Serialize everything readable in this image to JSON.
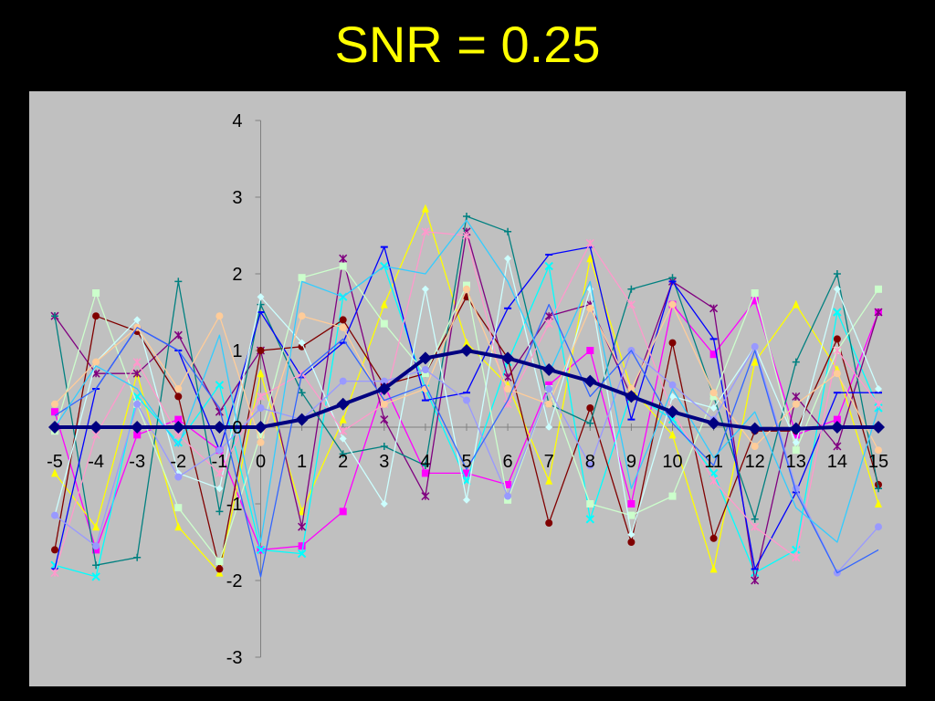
{
  "slide": {
    "title": "SNR = 0.25"
  },
  "colors": {
    "background": "#000000",
    "title": "#ffff00",
    "plot_background": "#c0c0c0",
    "mean_series": "#000080"
  },
  "chart_data": {
    "type": "line",
    "title": "SNR = 0.25",
    "xlabel": "",
    "ylabel": "",
    "x": [
      -5,
      -4,
      -3,
      -2,
      -1,
      0,
      1,
      2,
      3,
      4,
      5,
      6,
      7,
      8,
      9,
      10,
      11,
      12,
      13,
      14,
      15
    ],
    "xlim": [
      -5,
      15
    ],
    "ylim": [
      -3,
      4
    ],
    "y_ticks": [
      -3,
      -2,
      -1,
      0,
      1,
      2,
      3,
      4
    ],
    "grid": false,
    "legend": "none",
    "series": [
      {
        "color": "#000080",
        "marker": "diamond",
        "emphasis": true,
        "values": [
          0,
          0,
          0,
          0,
          0,
          0,
          0.1,
          0.3,
          0.5,
          0.9,
          1.0,
          0.9,
          0.75,
          0.6,
          0.4,
          0.2,
          0.05,
          -0.02,
          -0.02,
          0,
          0
        ]
      },
      {
        "color": "#ff00ff",
        "marker": "square",
        "values": [
          0.2,
          -1.6,
          -0.1,
          0.1,
          -0.3,
          -1.6,
          -1.55,
          -1.1,
          0.55,
          -0.6,
          -0.6,
          -0.75,
          0.55,
          1.0,
          -1.0,
          1.6,
          0.95,
          1.65,
          -0.1,
          0.1,
          1.5
        ]
      },
      {
        "color": "#ffff00",
        "marker": "triangle",
        "values": [
          -0.6,
          -1.3,
          0.7,
          -1.3,
          -1.9,
          0.7,
          -1.1,
          0.1,
          1.6,
          2.85,
          1.1,
          0.55,
          -0.7,
          2.2,
          0.5,
          -0.1,
          -1.85,
          0.85,
          1.6,
          0.75,
          -1.0
        ]
      },
      {
        "color": "#00ffff",
        "marker": "x",
        "values": [
          -1.8,
          -1.95,
          0.4,
          -0.2,
          0.55,
          -1.6,
          -1.65,
          1.7,
          2.1,
          0.5,
          -0.7,
          0.85,
          2.1,
          -1.2,
          0.45,
          0.1,
          -0.6,
          -1.9,
          -1.6,
          1.5,
          0.25
        ]
      },
      {
        "color": "#800080",
        "marker": "star",
        "values": [
          1.45,
          0.7,
          0.7,
          1.2,
          0.2,
          1.0,
          -1.3,
          2.2,
          0.1,
          -0.9,
          2.55,
          0.65,
          1.45,
          1.6,
          0.4,
          1.9,
          1.55,
          -2.0,
          0.4,
          -0.25,
          1.5
        ]
      },
      {
        "color": "#800000",
        "marker": "circle",
        "values": [
          -1.6,
          1.45,
          1.25,
          0.4,
          -1.85,
          1.0,
          1.05,
          1.4,
          0.55,
          0.7,
          1.7,
          0.9,
          -1.25,
          0.25,
          -1.5,
          1.1,
          -1.45,
          -0.05,
          -0.05,
          1.15,
          -0.75
        ]
      },
      {
        "color": "#008080",
        "marker": "plus",
        "values": [
          1.45,
          -1.8,
          -1.7,
          1.9,
          -1.1,
          1.6,
          0.45,
          -0.35,
          -0.25,
          -0.5,
          2.75,
          2.55,
          0.3,
          0.05,
          1.8,
          1.95,
          0.4,
          -1.2,
          0.85,
          2.0,
          -0.8
        ]
      },
      {
        "color": "#0000ff",
        "marker": "dash",
        "values": [
          -1.85,
          0.5,
          1.3,
          1.0,
          -0.3,
          1.5,
          0.65,
          1.1,
          2.35,
          0.35,
          0.45,
          1.55,
          2.25,
          2.35,
          0.1,
          1.9,
          1.15,
          -1.85,
          -0.85,
          0.45,
          0.45
        ]
      },
      {
        "color": "#ccffcc",
        "marker": "square",
        "values": [
          -0.05,
          1.75,
          0.3,
          -1.05,
          -1.75,
          -0.1,
          1.95,
          2.1,
          1.35,
          0.7,
          1.85,
          -0.95,
          0.5,
          -1.0,
          -1.15,
          -0.9,
          0.4,
          1.75,
          -0.3,
          1.0,
          1.8
        ]
      },
      {
        "color": "#ccffff",
        "marker": "diamond",
        "values": [
          -1.15,
          0.85,
          1.4,
          -0.6,
          -0.8,
          1.7,
          1.1,
          -0.15,
          -1.0,
          1.8,
          -0.95,
          2.2,
          0.0,
          1.8,
          -1.4,
          0.4,
          0.25,
          1.05,
          -0.2,
          1.8,
          0.5
        ]
      },
      {
        "color": "#ff99cc",
        "marker": "star",
        "values": [
          -1.9,
          -0.1,
          0.85,
          -0.1,
          -0.6,
          0.4,
          0.7,
          -0.05,
          0.3,
          2.55,
          2.5,
          0.3,
          1.35,
          2.4,
          1.6,
          0.2,
          -0.7,
          -1.3,
          -1.7,
          1.0,
          0.3
        ]
      },
      {
        "color": "#ffcc99",
        "marker": "circle",
        "values": [
          0.3,
          0.85,
          1.3,
          0.5,
          1.45,
          -0.2,
          1.45,
          1.3,
          0.3,
          0.5,
          1.8,
          0.5,
          0.3,
          1.55,
          0.5,
          1.6,
          0.45,
          -0.25,
          0.3,
          0.7,
          -0.3
        ]
      },
      {
        "color": "#9999ff",
        "marker": "circle",
        "values": [
          -1.15,
          -1.55,
          0.3,
          -0.65,
          -0.3,
          0.25,
          0.1,
          0.6,
          0.6,
          0.75,
          0.35,
          -0.9,
          0.5,
          -0.5,
          1.0,
          0.55,
          0.1,
          1.05,
          -0.8,
          -1.9,
          -1.3
        ]
      },
      {
        "color": "#3366ff",
        "marker": "none",
        "values": [
          0.15,
          0.5,
          1.3,
          1.0,
          0.25,
          -1.95,
          0.7,
          1.15,
          0.35,
          0.55,
          -0.55,
          0.35,
          1.6,
          0.4,
          1.0,
          0.05,
          -0.5,
          1.0,
          -0.85,
          -1.9,
          -1.6
        ]
      },
      {
        "color": "#33ccff",
        "marker": "none",
        "values": [
          0.0,
          0.8,
          0.5,
          -0.25,
          1.2,
          -1.5,
          1.9,
          1.7,
          2.1,
          2.0,
          2.7,
          1.9,
          0.7,
          1.9,
          -0.8,
          0.5,
          -0.4,
          0.2,
          -1.05,
          -1.5,
          0.25
        ]
      }
    ]
  }
}
